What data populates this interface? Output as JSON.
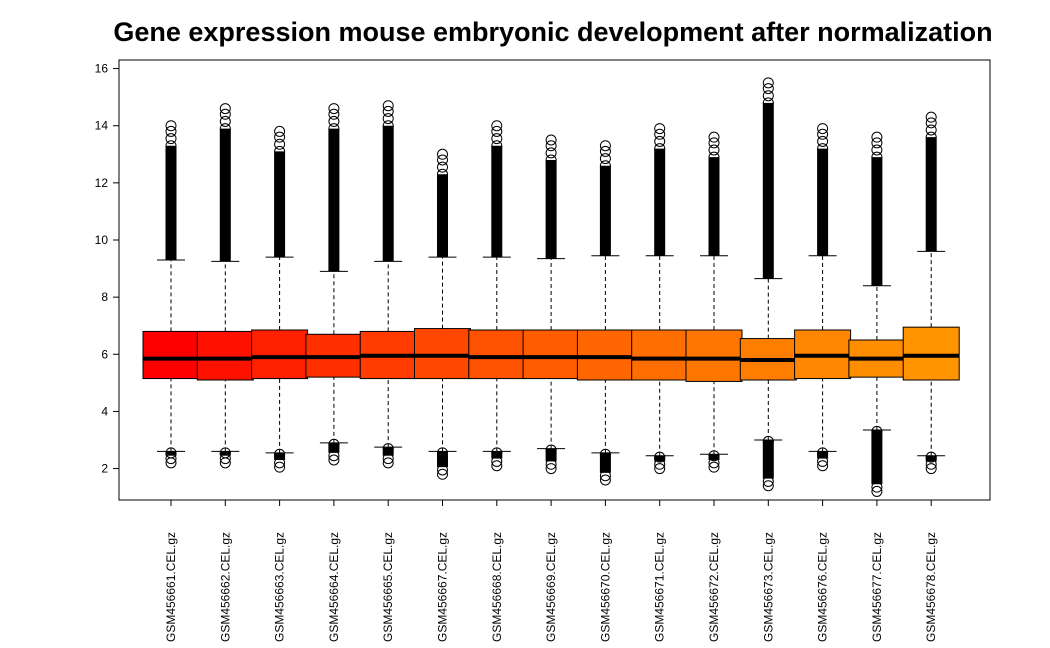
{
  "chart_data": {
    "type": "boxplot",
    "title": "Gene expression mouse embryonic development after normalization",
    "xlabel": "",
    "ylabel": "",
    "ylim": [
      0.9,
      16.3
    ],
    "yticks": [
      2,
      4,
      6,
      8,
      10,
      12,
      14,
      16
    ],
    "ytick_labels": [
      "2",
      "4",
      "6",
      "8",
      "10",
      "12",
      "14",
      "16"
    ],
    "grid": false,
    "legend": "none",
    "categories": [
      "GSM456661.CEL.gz",
      "GSM456662.CEL.gz",
      "GSM456663.CEL.gz",
      "GSM456664.CEL.gz",
      "GSM456665.CEL.gz",
      "GSM456667.CEL.gz",
      "GSM456668.CEL.gz",
      "GSM456669.CEL.gz",
      "GSM456670.CEL.gz",
      "GSM456671.CEL.gz",
      "GSM456672.CEL.gz",
      "GSM456673.CEL.gz",
      "GSM456676.CEL.gz",
      "GSM456677.CEL.gz",
      "GSM456678.CEL.gz"
    ],
    "colors": [
      "#ff0000",
      "#ff1100",
      "#ff2000",
      "#ff2f00",
      "#ff3b00",
      "#ff4700",
      "#ff5200",
      "#ff5c00",
      "#ff6500",
      "#ff6e00",
      "#ff7600",
      "#ff7e00",
      "#ff8600",
      "#ff8d00",
      "#ff9400"
    ],
    "boxes": [
      {
        "min": 2.6,
        "q1": 5.15,
        "median": 5.85,
        "q3": 6.8,
        "max": 9.3,
        "outliers_low": [
          2.2,
          2.6
        ],
        "outliers_high": [
          9.3,
          14.0
        ]
      },
      {
        "min": 2.6,
        "q1": 5.1,
        "median": 5.85,
        "q3": 6.8,
        "max": 9.25,
        "outliers_low": [
          2.2,
          2.6
        ],
        "outliers_high": [
          9.25,
          14.6
        ]
      },
      {
        "min": 2.55,
        "q1": 5.15,
        "median": 5.9,
        "q3": 6.85,
        "max": 9.4,
        "outliers_low": [
          2.05,
          2.55
        ],
        "outliers_high": [
          9.4,
          13.8
        ]
      },
      {
        "min": 2.9,
        "q1": 5.2,
        "median": 5.9,
        "q3": 6.7,
        "max": 8.9,
        "outliers_low": [
          2.3,
          2.9
        ],
        "outliers_high": [
          8.9,
          14.6
        ]
      },
      {
        "min": 2.75,
        "q1": 5.15,
        "median": 5.95,
        "q3": 6.8,
        "max": 9.25,
        "outliers_low": [
          2.2,
          2.75
        ],
        "outliers_high": [
          9.25,
          14.7
        ]
      },
      {
        "min": 2.6,
        "q1": 5.15,
        "median": 5.95,
        "q3": 6.9,
        "max": 9.4,
        "outliers_low": [
          1.8,
          2.6
        ],
        "outliers_high": [
          9.4,
          13.0
        ]
      },
      {
        "min": 2.6,
        "q1": 5.15,
        "median": 5.9,
        "q3": 6.85,
        "max": 9.4,
        "outliers_low": [
          2.1,
          2.6
        ],
        "outliers_high": [
          9.4,
          14.0
        ]
      },
      {
        "min": 2.7,
        "q1": 5.15,
        "median": 5.9,
        "q3": 6.85,
        "max": 9.35,
        "outliers_low": [
          2.0,
          2.7
        ],
        "outliers_high": [
          9.35,
          13.5
        ]
      },
      {
        "min": 2.55,
        "q1": 5.1,
        "median": 5.9,
        "q3": 6.85,
        "max": 9.45,
        "outliers_low": [
          1.6,
          2.55
        ],
        "outliers_high": [
          9.45,
          13.3
        ]
      },
      {
        "min": 2.45,
        "q1": 5.1,
        "median": 5.85,
        "q3": 6.85,
        "max": 9.45,
        "outliers_low": [
          2.0,
          2.45
        ],
        "outliers_high": [
          9.45,
          13.9
        ]
      },
      {
        "min": 2.5,
        "q1": 5.05,
        "median": 5.85,
        "q3": 6.85,
        "max": 9.45,
        "outliers_low": [
          2.05,
          2.5
        ],
        "outliers_high": [
          9.45,
          13.6
        ]
      },
      {
        "min": 3.0,
        "q1": 5.1,
        "median": 5.8,
        "q3": 6.55,
        "max": 8.65,
        "outliers_low": [
          1.4,
          3.0
        ],
        "outliers_high": [
          8.65,
          15.5
        ]
      },
      {
        "min": 2.6,
        "q1": 5.15,
        "median": 5.95,
        "q3": 6.85,
        "max": 9.45,
        "outliers_low": [
          2.1,
          2.6
        ],
        "outliers_high": [
          9.45,
          13.9
        ]
      },
      {
        "min": 3.35,
        "q1": 5.2,
        "median": 5.85,
        "q3": 6.5,
        "max": 8.4,
        "outliers_low": [
          1.2,
          3.35
        ],
        "outliers_high": [
          8.4,
          13.6
        ]
      },
      {
        "min": 2.45,
        "q1": 5.1,
        "median": 5.95,
        "q3": 6.95,
        "max": 9.6,
        "outliers_low": [
          2.0,
          2.45
        ],
        "outliers_high": [
          9.6,
          14.3
        ]
      }
    ]
  }
}
